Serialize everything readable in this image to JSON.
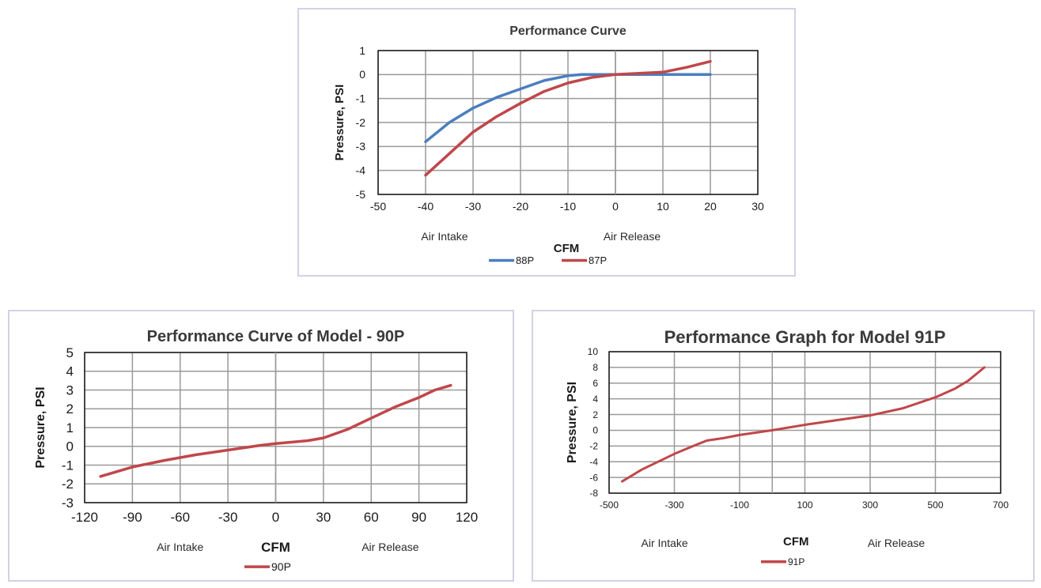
{
  "chart_data": [
    {
      "type": "line",
      "title": "Performance Curve",
      "xlabel": "CFM",
      "ylabel": "Pressure, PSI",
      "xlim": [
        -50,
        30
      ],
      "ylim": [
        -5,
        1
      ],
      "xticks": [
        "-50",
        "-40",
        "-30",
        "-20",
        "-10",
        "0",
        "10",
        "20",
        "30"
      ],
      "yticks": [
        "1",
        "0",
        "-1",
        "-2",
        "-3",
        "-4",
        "-5"
      ],
      "sub_labels": {
        "intake": "Air Intake",
        "release": "Air Release"
      },
      "grid": true,
      "legend": "bottom",
      "series": [
        {
          "name": "88P",
          "color": "#4a7ebf",
          "x": [
            -40,
            -35,
            -30,
            -25,
            -20,
            -15,
            -10,
            -7,
            -5,
            0,
            5,
            10,
            15,
            20
          ],
          "y": [
            -2.8,
            -2.0,
            -1.4,
            -0.95,
            -0.6,
            -0.25,
            -0.05,
            0.0,
            0.0,
            0.0,
            0.0,
            0.0,
            0.0,
            0.0
          ]
        },
        {
          "name": "87P",
          "color": "#c0474a",
          "x": [
            -40,
            -35,
            -30,
            -25,
            -20,
            -15,
            -10,
            -5,
            0,
            5,
            10,
            15,
            20
          ],
          "y": [
            -4.2,
            -3.3,
            -2.4,
            -1.75,
            -1.2,
            -0.7,
            -0.35,
            -0.12,
            0.0,
            0.05,
            0.1,
            0.3,
            0.55
          ]
        }
      ]
    },
    {
      "type": "line",
      "title": "Performance Curve of Model  - 90P",
      "xlabel": "CFM",
      "ylabel": "Pressure, PSI",
      "xlim": [
        -120,
        120
      ],
      "ylim": [
        -3,
        5
      ],
      "xticks": [
        "-120",
        "-90",
        "-60",
        "-30",
        "0",
        "30",
        "60",
        "90",
        "120"
      ],
      "yticks": [
        "5",
        "4",
        "3",
        "2",
        "1",
        "0",
        "-1",
        "-2",
        "-3"
      ],
      "sub_labels": {
        "intake": "Air Intake",
        "release": "Air Release"
      },
      "grid": true,
      "legend": "bottom",
      "series": [
        {
          "name": "90P",
          "color": "#c0474a",
          "x": [
            -110,
            -90,
            -70,
            -50,
            -30,
            -10,
            0,
            20,
            30,
            45,
            60,
            75,
            90,
            100,
            110
          ],
          "y": [
            -1.6,
            -1.1,
            -0.75,
            -0.45,
            -0.2,
            0.05,
            0.15,
            0.3,
            0.45,
            0.9,
            1.5,
            2.1,
            2.6,
            3.0,
            3.25
          ]
        }
      ]
    },
    {
      "type": "line",
      "title": "Performance Graph for Model 91P",
      "xlabel": "CFM",
      "ylabel": "Pressure, PSI",
      "xlim": [
        -500,
        700
      ],
      "ylim": [
        -8,
        10
      ],
      "xticks": [
        "-500",
        "-300",
        "-100",
        "100",
        "300",
        "500",
        "700"
      ],
      "yticks": [
        "10",
        "8",
        "6",
        "4",
        "2",
        "0",
        "-2",
        "-4",
        "-6",
        "-8"
      ],
      "sub_labels": {
        "intake": "Air Intake",
        "release": "Air Release"
      },
      "grid": true,
      "legend": "bottom",
      "series": [
        {
          "name": "91P",
          "color": "#c0474a",
          "x": [
            -460,
            -400,
            -300,
            -230,
            -200,
            -150,
            -100,
            0,
            100,
            200,
            300,
            400,
            500,
            560,
            600,
            650
          ],
          "y": [
            -6.5,
            -5.0,
            -3.0,
            -1.8,
            -1.3,
            -1.0,
            -0.6,
            0.0,
            0.7,
            1.3,
            1.9,
            2.8,
            4.2,
            5.3,
            6.3,
            8.0
          ]
        }
      ]
    }
  ]
}
